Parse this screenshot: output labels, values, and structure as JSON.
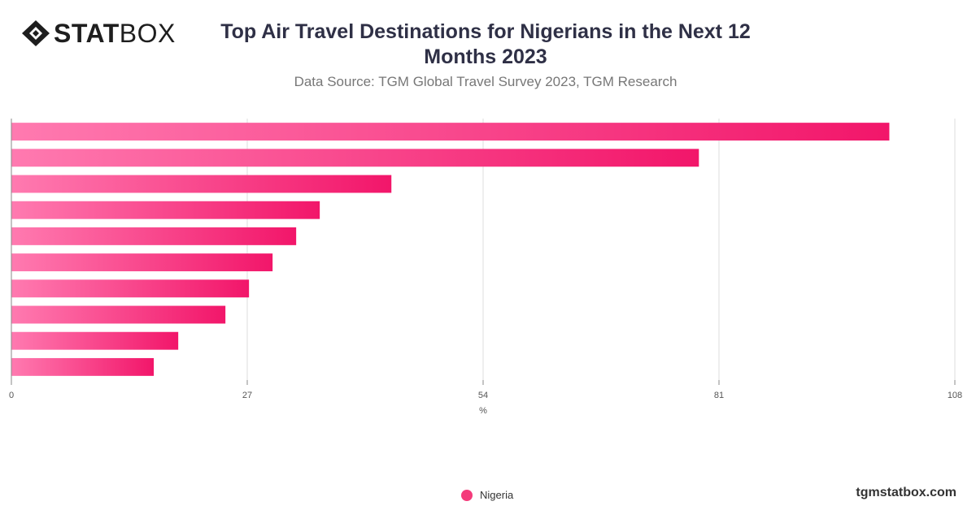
{
  "header": {
    "logo_bold": "STAT",
    "logo_light": "BOX",
    "title_line1": "Top Air Travel Destinations for Nigerians in the Next 12",
    "title_line2": "Months 2023",
    "subtitle": "Data Source: TGM Global Travel Survey 2023, TGM Research"
  },
  "footer": {
    "site": "tgmstatbox.com"
  },
  "colors": {
    "bar_start": "#ff7ab0",
    "bar_end": "#f2166a",
    "legend": "#f43b7b",
    "grid": "#dddddd",
    "axis": "#888888"
  },
  "chart_data": {
    "type": "bar",
    "orientation": "horizontal",
    "categories": [
      "",
      "",
      "",
      "",
      "",
      "",
      "",
      "",
      "",
      ""
    ],
    "series": [
      {
        "name": "Nigeria",
        "values": [
          100.5,
          78.7,
          43.5,
          35.3,
          32.6,
          29.9,
          27.2,
          24.5,
          19.1,
          16.3
        ]
      }
    ],
    "xlabel": "%",
    "xlim": [
      0,
      108
    ],
    "xticks": [
      0,
      27,
      54,
      81,
      108
    ],
    "grid": true,
    "legend_position": "bottom-center"
  }
}
